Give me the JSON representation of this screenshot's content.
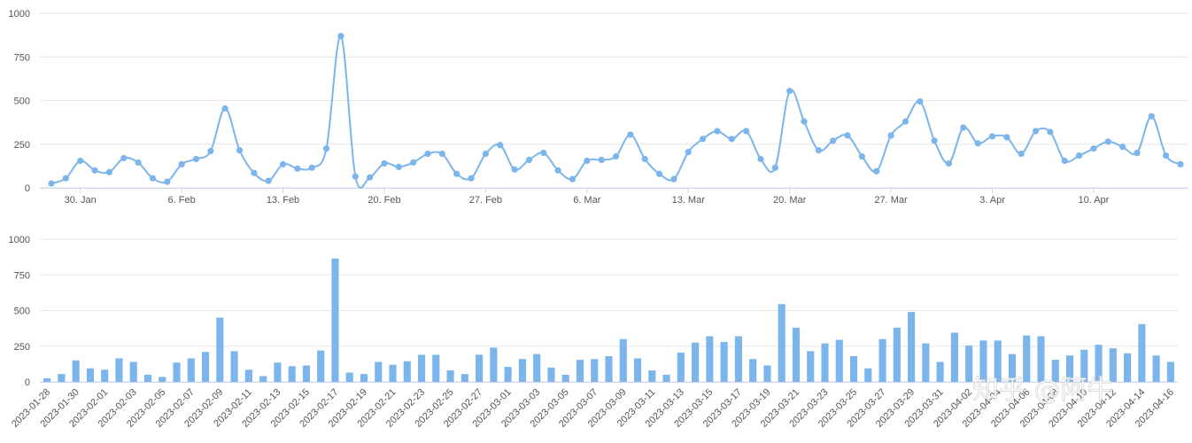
{
  "colors": {
    "series": "#7cb5ec",
    "grid": "#e6e6e6",
    "axis": "#ccd6eb",
    "text": "#555555"
  },
  "watermark": "知乎 @阿牛",
  "chart_data": [
    {
      "type": "line",
      "smooth": true,
      "ylim": [
        0,
        1000
      ],
      "yticks": [
        0,
        250,
        500,
        750,
        1000
      ],
      "grid": true,
      "x_start": "2023-01-28",
      "x_tick_labels": [
        "30. Jan",
        "6. Feb",
        "13. Feb",
        "20. Feb",
        "27. Feb",
        "6. Mar",
        "13. Mar",
        "20. Mar",
        "27. Mar",
        "3. Apr",
        "10. Apr"
      ],
      "x_tick_dates": [
        "2023-01-30",
        "2023-02-06",
        "2023-02-13",
        "2023-02-20",
        "2023-02-27",
        "2023-03-06",
        "2023-03-13",
        "2023-03-20",
        "2023-03-27",
        "2023-04-03",
        "2023-04-10"
      ],
      "values": [
        25,
        55,
        155,
        100,
        90,
        170,
        145,
        55,
        35,
        135,
        165,
        210,
        455,
        215,
        85,
        40,
        135,
        110,
        115,
        225,
        870,
        65,
        60,
        140,
        120,
        145,
        195,
        195,
        80,
        55,
        195,
        245,
        105,
        160,
        200,
        100,
        50,
        155,
        160,
        180,
        305,
        165,
        80,
        50,
        205,
        280,
        325,
        280,
        325,
        165,
        115,
        555,
        380,
        215,
        270,
        300,
        180,
        95,
        300,
        380,
        495,
        270,
        140,
        345,
        255,
        295,
        290,
        195,
        325,
        320,
        155,
        185,
        225,
        265,
        235,
        200,
        410,
        185,
        135
      ]
    },
    {
      "type": "bar",
      "ylim": [
        0,
        1000
      ],
      "yticks": [
        0,
        250,
        500,
        750,
        1000
      ],
      "grid": true,
      "categories": [
        "2023-01-28",
        "2023-01-29",
        "2023-01-30",
        "2023-01-31",
        "2023-02-01",
        "2023-02-02",
        "2023-02-03",
        "2023-02-04",
        "2023-02-05",
        "2023-02-06",
        "2023-02-07",
        "2023-02-08",
        "2023-02-09",
        "2023-02-10",
        "2023-02-11",
        "2023-02-12",
        "2023-02-13",
        "2023-02-14",
        "2023-02-15",
        "2023-02-16",
        "2023-02-17",
        "2023-02-18",
        "2023-02-19",
        "2023-02-20",
        "2023-02-21",
        "2023-02-22",
        "2023-02-23",
        "2023-02-24",
        "2023-02-25",
        "2023-02-26",
        "2023-02-27",
        "2023-02-28",
        "2023-03-01",
        "2023-03-02",
        "2023-03-03",
        "2023-03-04",
        "2023-03-05",
        "2023-03-06",
        "2023-03-07",
        "2023-03-08",
        "2023-03-09",
        "2023-03-10",
        "2023-03-11",
        "2023-03-12",
        "2023-03-13",
        "2023-03-14",
        "2023-03-15",
        "2023-03-16",
        "2023-03-17",
        "2023-03-18",
        "2023-03-19",
        "2023-03-20",
        "2023-03-21",
        "2023-03-22",
        "2023-03-23",
        "2023-03-24",
        "2023-03-25",
        "2023-03-26",
        "2023-03-27",
        "2023-03-28",
        "2023-03-29",
        "2023-03-30",
        "2023-03-31",
        "2023-04-01",
        "2023-04-02",
        "2023-04-03",
        "2023-04-04",
        "2023-04-05",
        "2023-04-06",
        "2023-04-07",
        "2023-04-08",
        "2023-04-09",
        "2023-04-10",
        "2023-04-11",
        "2023-04-12",
        "2023-04-13",
        "2023-04-14",
        "2023-04-15",
        "2023-04-16"
      ],
      "x_tick_labels": [
        "2023-01-28",
        "2023-01-30",
        "2023-02-01",
        "2023-02-03",
        "2023-02-05",
        "2023-02-07",
        "2023-02-09",
        "2023-02-11",
        "2023-02-13",
        "2023-02-15",
        "2023-02-17",
        "2023-02-19",
        "2023-02-21",
        "2023-02-23",
        "2023-02-25",
        "2023-02-27",
        "2023-03-01",
        "2023-03-03",
        "2023-03-05",
        "2023-03-07",
        "2023-03-09",
        "2023-03-11",
        "2023-03-13",
        "2023-03-15",
        "2023-03-17",
        "2023-03-19",
        "2023-03-21",
        "2023-03-23",
        "2023-03-25",
        "2023-03-27",
        "2023-03-29",
        "2023-03-31",
        "2023-04-02",
        "2023-04-04",
        "2023-04-06",
        "2023-04-08",
        "2023-04-10",
        "2023-04-12",
        "2023-04-14",
        "2023-04-16"
      ],
      "values": [
        25,
        55,
        150,
        95,
        85,
        165,
        140,
        50,
        35,
        135,
        165,
        210,
        450,
        215,
        85,
        40,
        135,
        110,
        115,
        220,
        865,
        65,
        55,
        140,
        120,
        145,
        190,
        190,
        80,
        55,
        190,
        240,
        105,
        160,
        195,
        100,
        50,
        155,
        160,
        180,
        300,
        165,
        80,
        50,
        205,
        275,
        320,
        280,
        320,
        160,
        115,
        545,
        380,
        215,
        270,
        295,
        180,
        95,
        300,
        380,
        490,
        270,
        140,
        345,
        255,
        290,
        290,
        195,
        325,
        320,
        155,
        185,
        225,
        260,
        235,
        200,
        405,
        185,
        140
      ]
    }
  ]
}
